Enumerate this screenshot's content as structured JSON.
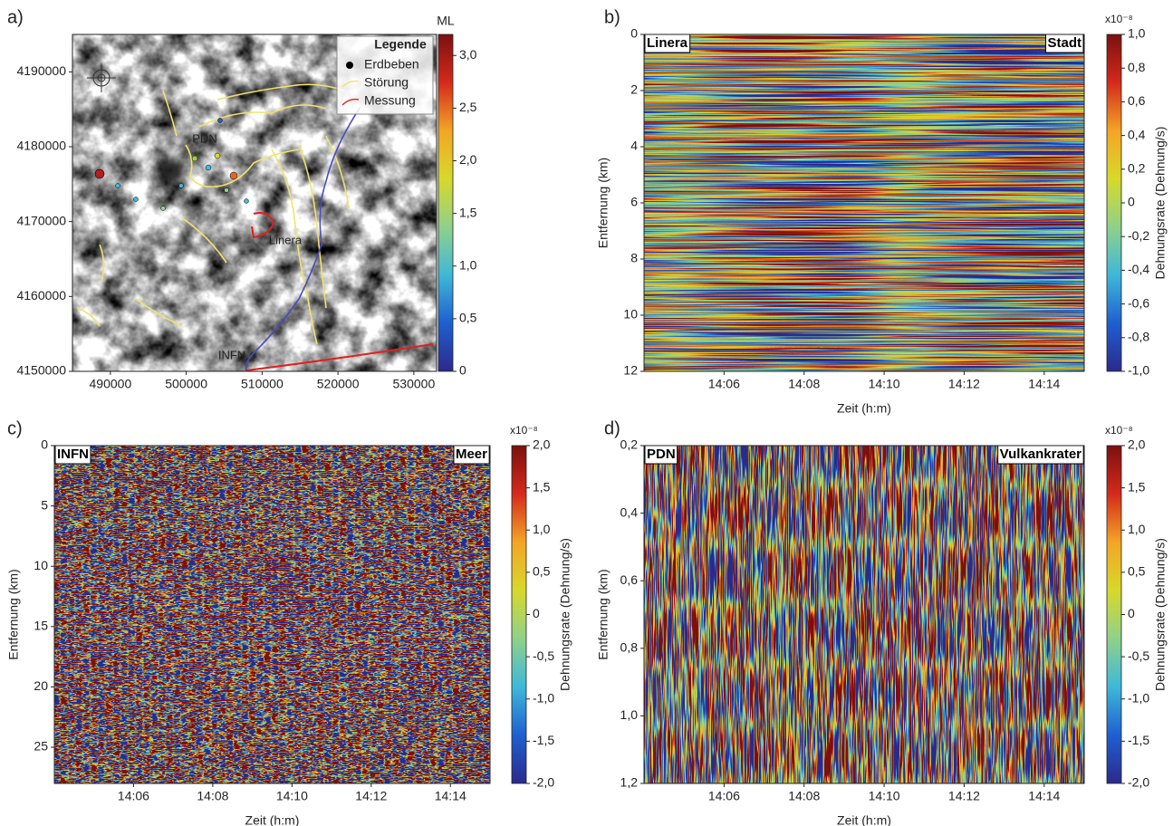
{
  "chart_data": [
    {
      "type": "map",
      "panel_label": "a)",
      "xlim": [
        485000,
        533000
      ],
      "ylim": [
        4150000,
        4195000
      ],
      "xticks": [
        490000,
        500000,
        510000,
        520000,
        530000
      ],
      "yticks": [
        4150000,
        4160000,
        4170000,
        4180000,
        4190000
      ],
      "place_labels": [
        "PDN",
        "Linera",
        "INFN"
      ],
      "legend": {
        "title": "Legende",
        "entries": [
          {
            "name": "Erdbeben",
            "color": "#000000",
            "marker": "dot"
          },
          {
            "name": "Störung",
            "color": "#f2e26a",
            "marker": "line"
          },
          {
            "name": "Messung",
            "color": "#e02020",
            "marker": "line"
          }
        ]
      },
      "legend_position": "upper right",
      "colorbar": {
        "label": "ML",
        "lim": [
          0,
          3.2
        ],
        "ticks": [
          0,
          {
            "value": 0.5,
            "label": "0,5"
          },
          {
            "value": 1.0,
            "label": "1,0"
          },
          {
            "value": 1.5,
            "label": "1,5"
          },
          {
            "value": 2.0,
            "label": "2,0"
          },
          {
            "value": 2.5,
            "label": "2,5"
          },
          {
            "value": 3.0,
            "label": "3,0"
          }
        ]
      },
      "colormap": [
        "#2b2a8c",
        "#1f5fd0",
        "#3fb8d8",
        "#8fd18a",
        "#d7d92a",
        "#f3a526",
        "#d42a1b",
        "#7c1010"
      ]
    },
    {
      "type": "heatmap",
      "panel_label": "b)",
      "corner_labels": [
        "Linera",
        "Stadt"
      ],
      "xlabel": "Zeit (h:m)",
      "ylabel": "Entfernung (km)",
      "yaxis_inverted": true,
      "xlim": [
        "14:04",
        "14:15"
      ],
      "xticks": [
        "14:06",
        "14:08",
        "14:10",
        "14:12",
        "14:14"
      ],
      "ylim": [
        0,
        12
      ],
      "yticks": [
        0,
        2,
        4,
        6,
        8,
        10,
        12
      ],
      "colorbar": {
        "unit": "x10⁻⁸",
        "label": "Dehnungsrate (Dehnung/s)",
        "lim": [
          -1,
          1
        ],
        "ticks": [
          {
            "value": -1.0,
            "label": "-1,0"
          },
          {
            "value": -0.8,
            "label": "-0,8"
          },
          {
            "value": -0.6,
            "label": "-0,6"
          },
          {
            "value": -0.4,
            "label": "-0,4"
          },
          {
            "value": -0.2,
            "label": "-0,2"
          },
          0,
          {
            "value": 0.2,
            "label": "0,2"
          },
          {
            "value": 0.4,
            "label": "0,4"
          },
          {
            "value": 0.6,
            "label": "0,6"
          },
          {
            "value": 0.8,
            "label": "0,8"
          },
          {
            "value": 1.0,
            "label": "1,0"
          }
        ]
      },
      "colormap": [
        "#2b2a8c",
        "#1f5fd0",
        "#3fb8d8",
        "#8fd18a",
        "#d7d92a",
        "#f3a526",
        "#d42a1b",
        "#7c1010"
      ]
    },
    {
      "type": "heatmap",
      "panel_label": "c)",
      "corner_labels": [
        "INFN",
        "Meer"
      ],
      "xlabel": "Zeit (h:m)",
      "ylabel": "Entfernung (km)",
      "yaxis_inverted": true,
      "xlim": [
        "14:04",
        "14:15"
      ],
      "xticks": [
        "14:06",
        "14:08",
        "14:10",
        "14:12",
        "14:14"
      ],
      "ylim": [
        0,
        28
      ],
      "yticks": [
        0,
        5,
        10,
        15,
        20,
        25
      ],
      "colorbar": {
        "unit": "x10⁻⁸",
        "label": "Dehnungsrate (Dehnung/s)",
        "lim": [
          -2,
          2
        ],
        "ticks": [
          {
            "value": -2.0,
            "label": "-2,0"
          },
          {
            "value": -1.5,
            "label": "-1,5"
          },
          {
            "value": -1.0,
            "label": "-1,0"
          },
          {
            "value": -0.5,
            "label": "-0,5"
          },
          0,
          {
            "value": 0.5,
            "label": "0,5"
          },
          {
            "value": 1.0,
            "label": "1,0"
          },
          {
            "value": 1.5,
            "label": "1,5"
          },
          {
            "value": 2.0,
            "label": "2,0"
          }
        ]
      },
      "colormap": [
        "#2b2a8c",
        "#1f5fd0",
        "#3fb8d8",
        "#8fd18a",
        "#d7d92a",
        "#f3a526",
        "#d42a1b",
        "#7c1010"
      ]
    },
    {
      "type": "heatmap",
      "panel_label": "d)",
      "corner_labels": [
        "PDN",
        "Vulkankrater"
      ],
      "xlabel": "Zeit (h:m)",
      "ylabel": "Entfernung (km)",
      "yaxis_inverted": true,
      "xlim": [
        "14:04",
        "14:15"
      ],
      "xticks": [
        "14:06",
        "14:08",
        "14:10",
        "14:12",
        "14:14"
      ],
      "ylim": [
        0.2,
        1.2
      ],
      "yticks": [
        {
          "value": 0.2,
          "label": "0,2"
        },
        {
          "value": 0.4,
          "label": "0,4"
        },
        {
          "value": 0.6,
          "label": "0,6"
        },
        {
          "value": 0.8,
          "label": "0,8"
        },
        {
          "value": 1.0,
          "label": "1,0"
        },
        {
          "value": 1.2,
          "label": "1,2"
        }
      ],
      "colorbar": {
        "unit": "x10⁻⁸",
        "label": "Dehnungsrate (Dehnung/s)",
        "lim": [
          -2,
          2
        ],
        "ticks": [
          {
            "value": -2.0,
            "label": "-2,0"
          },
          {
            "value": -1.5,
            "label": "-1,5"
          },
          {
            "value": -1.0,
            "label": "-1,0"
          },
          {
            "value": -0.5,
            "label": "-0,5"
          },
          0,
          {
            "value": 0.5,
            "label": "0,5"
          },
          {
            "value": 1.0,
            "label": "1,0"
          },
          {
            "value": 1.5,
            "label": "1,5"
          },
          {
            "value": 2.0,
            "label": "2,0"
          }
        ]
      },
      "colormap": [
        "#2b2a8c",
        "#1f5fd0",
        "#3fb8d8",
        "#8fd18a",
        "#d7d92a",
        "#f3a526",
        "#d42a1b",
        "#7c1010"
      ]
    }
  ]
}
